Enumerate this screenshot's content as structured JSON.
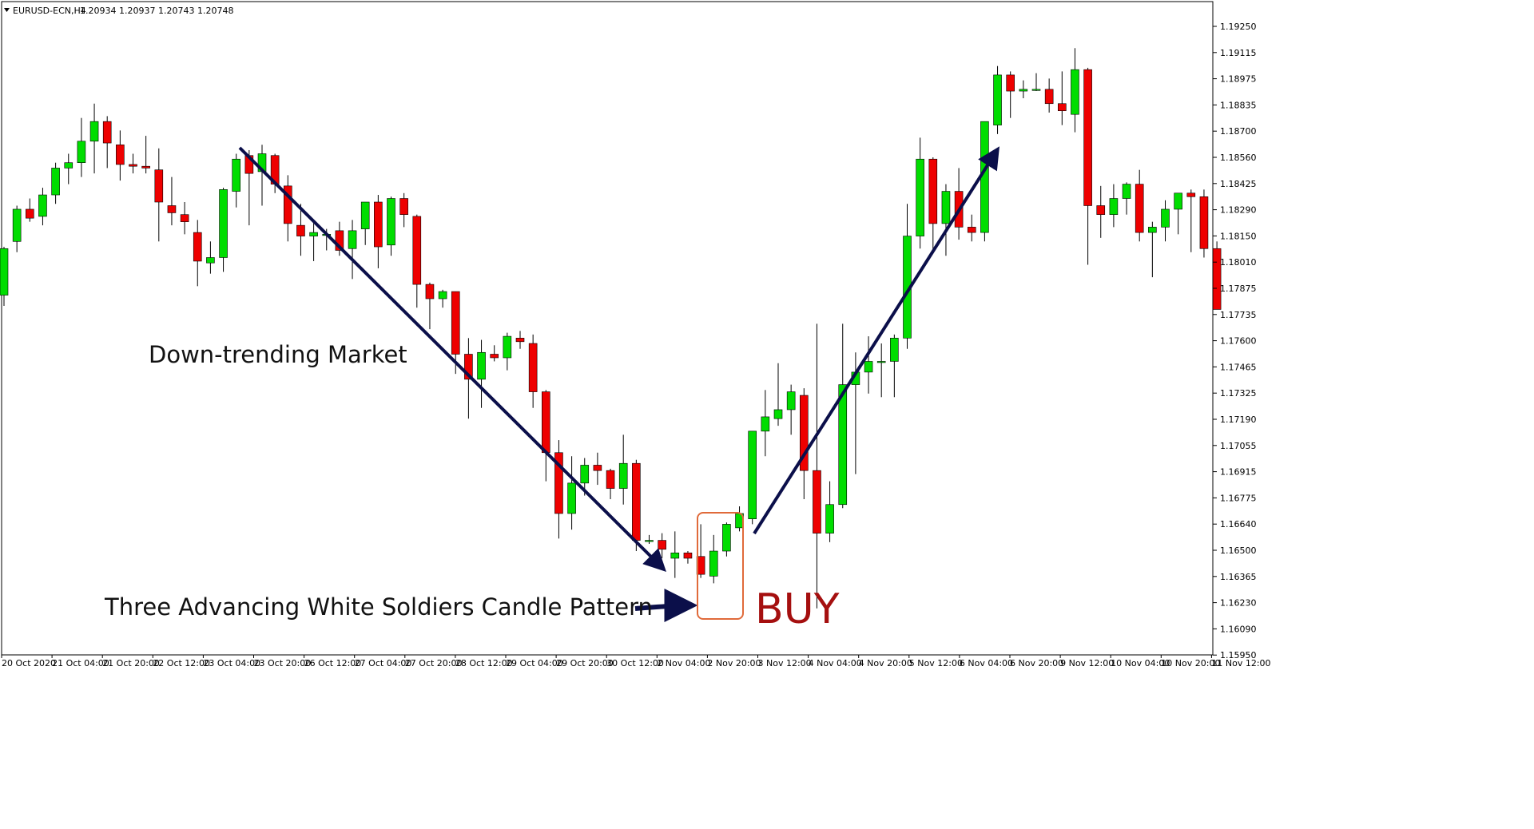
{
  "header": {
    "symbol_timeframe": "EURUSD-ECN,H4",
    "quote": "1.20934 1.20937 1.20743 1.20748",
    "dropdown_icon": "triangle-down-icon"
  },
  "colors": {
    "bull": "#00dd00",
    "bear": "#ee0000",
    "wick": "#000000",
    "trend_arrow": "#0b0f4a",
    "highlight_box": "#e06a3a",
    "buy_text": "#a50f0f"
  },
  "annotations": {
    "downtrend_label": "Down-trending Market",
    "pattern_label": "Three Advancing White Soldiers Candle Pattern",
    "buy_label": "BUY"
  },
  "chart_data": {
    "type": "candlestick",
    "symbol": "EURUSD-ECN",
    "timeframe": "H4",
    "ylim": [
      1.1587,
      1.1952
    ],
    "y_ticks": [
      "1.19250",
      "1.19115",
      "1.18975",
      "1.18835",
      "1.18700",
      "1.18560",
      "1.18425",
      "1.18290",
      "1.18150",
      "1.18010",
      "1.17875",
      "1.17735",
      "1.17600",
      "1.17465",
      "1.17325",
      "1.17190",
      "1.17055",
      "1.16915",
      "1.16775",
      "1.16640",
      "1.16500",
      "1.16365",
      "1.16230",
      "1.16090",
      "1.15950"
    ],
    "x_ticks": [
      "20 Oct 2020",
      "21 Oct 04:00",
      "21 Oct 20:00",
      "22 Oct 12:00",
      "23 Oct 04:00",
      "23 Oct 20:00",
      "26 Oct 12:00",
      "27 Oct 04:00",
      "27 Oct 20:00",
      "28 Oct 12:00",
      "29 Oct 04:00",
      "29 Oct 20:00",
      "30 Oct 12:00",
      "2 Nov 04:00",
      "2 Nov 20:00",
      "3 Nov 12:00",
      "4 Nov 04:00",
      "4 Nov 20:00",
      "5 Nov 12:00",
      "6 Nov 04:00",
      "6 Nov 20:00",
      "9 Nov 12:00",
      "10 Nov 04:00",
      "10 Nov 20:00",
      "11 Nov 12:00"
    ],
    "candles": [
      [
        1.1788,
        1.1815,
        1.1782,
        1.1814
      ],
      [
        1.1818,
        1.1838,
        1.1812,
        1.1836
      ],
      [
        1.1836,
        1.1842,
        1.1829,
        1.1831
      ],
      [
        1.1832,
        1.1848,
        1.1827,
        1.1844
      ],
      [
        1.1844,
        1.1862,
        1.1839,
        1.1859
      ],
      [
        1.1859,
        1.1867,
        1.185,
        1.1862
      ],
      [
        1.1862,
        1.1887,
        1.1854,
        1.1874
      ],
      [
        1.1874,
        1.1895,
        1.1856,
        1.1885
      ],
      [
        1.1885,
        1.1888,
        1.1859,
        1.1873
      ],
      [
        1.1872,
        1.188,
        1.1852,
        1.1861
      ],
      [
        1.1861,
        1.1867,
        1.1856,
        1.186
      ],
      [
        1.186,
        1.1877,
        1.1856,
        1.1859
      ],
      [
        1.1858,
        1.187,
        1.1818,
        1.184
      ],
      [
        1.1838,
        1.1854,
        1.1827,
        1.1834
      ],
      [
        1.1833,
        1.184,
        1.1822,
        1.1829
      ],
      [
        1.1823,
        1.183,
        1.1793,
        1.1807
      ],
      [
        1.1806,
        1.1818,
        1.18,
        1.1809
      ],
      [
        1.1809,
        1.1848,
        1.1801,
        1.1847
      ],
      [
        1.1846,
        1.1867,
        1.1837,
        1.1864
      ],
      [
        1.1866,
        1.1869,
        1.1827,
        1.1856
      ],
      [
        1.1857,
        1.1872,
        1.1838,
        1.1867
      ],
      [
        1.1866,
        1.1867,
        1.1845,
        1.185
      ],
      [
        1.1849,
        1.1855,
        1.1818,
        1.1828
      ],
      [
        1.1827,
        1.1839,
        1.181,
        1.1821
      ],
      [
        1.1821,
        1.183,
        1.1807,
        1.1823
      ],
      [
        1.1822,
        1.1825,
        1.1813,
        1.1822
      ],
      [
        1.1824,
        1.1829,
        1.181,
        1.1813
      ],
      [
        1.1814,
        1.183,
        1.1797,
        1.1824
      ],
      [
        1.1825,
        1.184,
        1.1816,
        1.184
      ],
      [
        1.184,
        1.1844,
        1.1803,
        1.1815
      ],
      [
        1.1816,
        1.1843,
        1.181,
        1.1842
      ],
      [
        1.1842,
        1.1845,
        1.1826,
        1.1833
      ],
      [
        1.1832,
        1.1833,
        1.1781,
        1.1794
      ],
      [
        1.1794,
        1.1795,
        1.1769,
        1.1786
      ],
      [
        1.1786,
        1.1791,
        1.1781,
        1.179
      ],
      [
        1.179,
        1.179,
        1.1744,
        1.1755
      ],
      [
        1.1755,
        1.1764,
        1.1719,
        1.1741
      ],
      [
        1.1741,
        1.1763,
        1.1725,
        1.1756
      ],
      [
        1.1755,
        1.176,
        1.1751,
        1.1753
      ],
      [
        1.1753,
        1.1767,
        1.1746,
        1.1765
      ],
      [
        1.1764,
        1.1768,
        1.1758,
        1.1762
      ],
      [
        1.1761,
        1.1766,
        1.1725,
        1.1734
      ],
      [
        1.1734,
        1.1735,
        1.1684,
        1.17
      ],
      [
        1.17,
        1.1707,
        1.1652,
        1.1666
      ],
      [
        1.1666,
        1.1698,
        1.1657,
        1.1683
      ],
      [
        1.1683,
        1.1697,
        1.1676,
        1.1693
      ],
      [
        1.1693,
        1.17,
        1.1682,
        1.169
      ],
      [
        1.169,
        1.1691,
        1.1674,
        1.168
      ],
      [
        1.168,
        1.171,
        1.1671,
        1.1694
      ],
      [
        1.1694,
        1.1696,
        1.1645,
        1.1651
      ],
      [
        1.1651,
        1.1654,
        1.1649,
        1.1651
      ],
      [
        1.1651,
        1.1655,
        1.1641,
        1.1646
      ],
      [
        1.1641,
        1.1656,
        1.163,
        1.1644
      ],
      [
        1.1644,
        1.1645,
        1.1638,
        1.1641
      ],
      [
        1.1642,
        1.166,
        1.163,
        1.1632
      ],
      [
        1.1631,
        1.1654,
        1.1627,
        1.1645
      ],
      [
        1.1645,
        1.1661,
        1.1642,
        1.166
      ],
      [
        1.1658,
        1.167,
        1.1656,
        1.1666
      ],
      [
        1.1663,
        1.1712,
        1.166,
        1.1712
      ],
      [
        1.1712,
        1.1735,
        1.1698,
        1.172
      ],
      [
        1.1719,
        1.175,
        1.1715,
        1.1724
      ],
      [
        1.1724,
        1.1738,
        1.171,
        1.1734
      ],
      [
        1.1732,
        1.1736,
        1.1674,
        1.169
      ],
      [
        1.169,
        1.1772,
        1.1613,
        1.1655
      ],
      [
        1.1655,
        1.1684,
        1.165,
        1.1671
      ],
      [
        1.1671,
        1.1772,
        1.1669,
        1.1738
      ],
      [
        1.1738,
        1.1756,
        1.1688,
        1.1745
      ],
      [
        1.1745,
        1.1765,
        1.1733,
        1.1751
      ],
      [
        1.1751,
        1.1761,
        1.1731,
        1.1751
      ],
      [
        1.1751,
        1.1766,
        1.1731,
        1.1764
      ],
      [
        1.1764,
        1.1839,
        1.1758,
        1.1821
      ],
      [
        1.1821,
        1.1876,
        1.1814,
        1.1864
      ],
      [
        1.1864,
        1.1865,
        1.1813,
        1.1828
      ],
      [
        1.1828,
        1.185,
        1.181,
        1.1846
      ],
      [
        1.1846,
        1.1859,
        1.1819,
        1.1826
      ],
      [
        1.1826,
        1.1833,
        1.1818,
        1.1823
      ],
      [
        1.1823,
        1.1885,
        1.1818,
        1.1885
      ],
      [
        1.1883,
        1.1916,
        1.1878,
        1.1911
      ],
      [
        1.1911,
        1.1913,
        1.1887,
        1.1902
      ],
      [
        1.1902,
        1.1908,
        1.1898,
        1.1903
      ],
      [
        1.1903,
        1.1912,
        1.1902,
        1.1903
      ],
      [
        1.1903,
        1.1909,
        1.189,
        1.1895
      ],
      [
        1.1895,
        1.1913,
        1.1883,
        1.1891
      ],
      [
        1.1889,
        1.1926,
        1.1879,
        1.1914
      ],
      [
        1.1914,
        1.1915,
        1.1805,
        1.1838
      ],
      [
        1.1838,
        1.1849,
        1.182,
        1.1833
      ],
      [
        1.1833,
        1.185,
        1.1826,
        1.1842
      ],
      [
        1.1842,
        1.1851,
        1.1833,
        1.185
      ],
      [
        1.185,
        1.1858,
        1.1818,
        1.1823
      ],
      [
        1.1823,
        1.1829,
        1.1798,
        1.1826
      ],
      [
        1.1826,
        1.1841,
        1.1818,
        1.1836
      ],
      [
        1.1836,
        1.1844,
        1.1822,
        1.1845
      ],
      [
        1.1845,
        1.1847,
        1.1812,
        1.1843
      ],
      [
        1.1843,
        1.1847,
        1.1809,
        1.1814
      ],
      [
        1.1814,
        1.1818,
        1.1782,
        1.178
      ]
    ]
  }
}
